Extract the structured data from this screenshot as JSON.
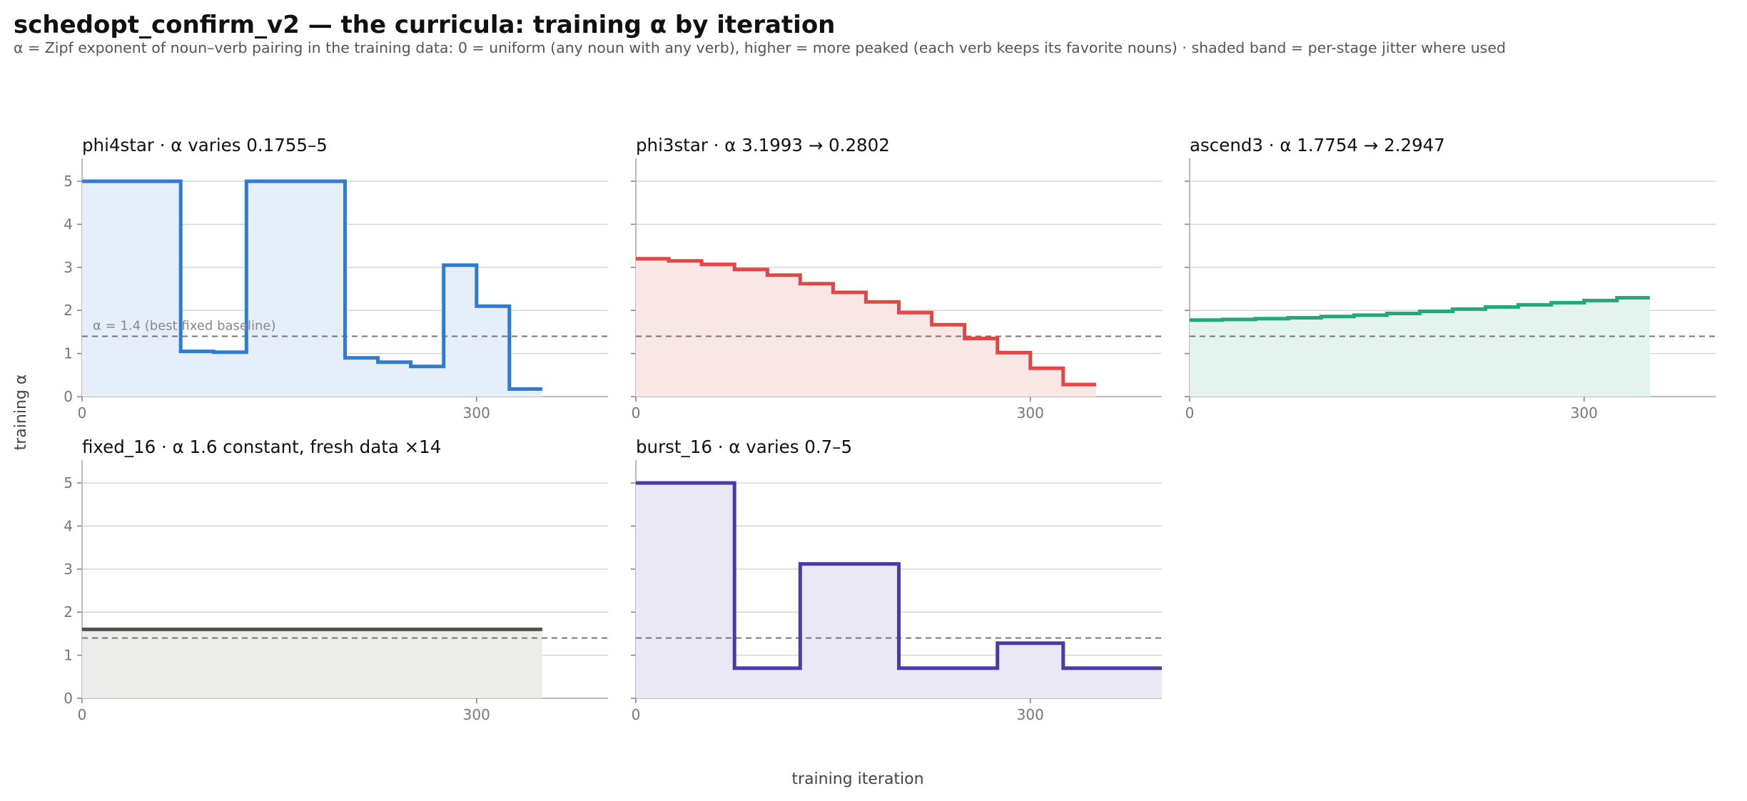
{
  "title": "schedopt_confirm_v2 — the curricula: training α by iteration",
  "subtitle": "α = Zipf exponent of noun–verb pairing in the training data: 0 = uniform (any noun with any verb), higher = more peaked (each verb keeps its favorite nouns) · shaded band = per-stage jitter where used",
  "ylabel": "training α",
  "xlabel": "training iteration",
  "baseline_label": "α = 1.4 (best fixed baseline)",
  "chart_data": [
    {
      "type": "line",
      "name": "phi4star",
      "title": "phi4star   ·   α varies 0.1755–5",
      "color": "#2e7bd1",
      "fill": "#e6eef9",
      "xlim": [
        0,
        400
      ],
      "ylim": [
        0,
        5.3
      ],
      "xticks": [
        0,
        300
      ],
      "yticks": [
        0,
        1,
        2,
        3,
        4,
        5
      ],
      "baseline": 1.4,
      "steps": [
        {
          "x0": 0,
          "x1": 75,
          "y": 5
        },
        {
          "x0": 75,
          "x1": 100,
          "y": 1.05
        },
        {
          "x0": 100,
          "x1": 125,
          "y": 1.03
        },
        {
          "x0": 125,
          "x1": 200,
          "y": 5
        },
        {
          "x0": 200,
          "x1": 225,
          "y": 0.9
        },
        {
          "x0": 225,
          "x1": 250,
          "y": 0.8
        },
        {
          "x0": 250,
          "x1": 275,
          "y": 0.7
        },
        {
          "x0": 275,
          "x1": 300,
          "y": 3.05
        },
        {
          "x0": 300,
          "x1": 325,
          "y": 2.1
        },
        {
          "x0": 325,
          "x1": 350,
          "y": 0.1755
        }
      ]
    },
    {
      "type": "line",
      "name": "phi3star",
      "title": "phi3star   ·   α 3.1993 → 0.2802",
      "color": "#e04848",
      "fill": "#fbe6e6",
      "xlim": [
        0,
        400
      ],
      "ylim": [
        0,
        5.3
      ],
      "xticks": [
        0,
        300
      ],
      "yticks": [
        0,
        1,
        2,
        3,
        4,
        5
      ],
      "baseline": 1.4,
      "steps": [
        {
          "x0": 0,
          "x1": 25,
          "y": 3.1993
        },
        {
          "x0": 25,
          "x1": 50,
          "y": 3.15
        },
        {
          "x0": 50,
          "x1": 75,
          "y": 3.07
        },
        {
          "x0": 75,
          "x1": 100,
          "y": 2.95
        },
        {
          "x0": 100,
          "x1": 125,
          "y": 2.82
        },
        {
          "x0": 125,
          "x1": 150,
          "y": 2.62
        },
        {
          "x0": 150,
          "x1": 175,
          "y": 2.42
        },
        {
          "x0": 175,
          "x1": 200,
          "y": 2.2
        },
        {
          "x0": 200,
          "x1": 225,
          "y": 1.95
        },
        {
          "x0": 225,
          "x1": 250,
          "y": 1.67
        },
        {
          "x0": 250,
          "x1": 275,
          "y": 1.35
        },
        {
          "x0": 275,
          "x1": 300,
          "y": 1.02
        },
        {
          "x0": 300,
          "x1": 325,
          "y": 0.66
        },
        {
          "x0": 325,
          "x1": 350,
          "y": 0.2802
        }
      ]
    },
    {
      "type": "line",
      "name": "ascend3",
      "title": "ascend3   ·   α 1.7754 → 2.2947",
      "color": "#22a87a",
      "fill": "#e3f4ee",
      "xlim": [
        0,
        400
      ],
      "ylim": [
        0,
        5.3
      ],
      "xticks": [
        0,
        300
      ],
      "yticks": [
        0,
        1,
        2,
        3,
        4,
        5
      ],
      "baseline": 1.4,
      "steps": [
        {
          "x0": 0,
          "x1": 25,
          "y": 1.7754
        },
        {
          "x0": 25,
          "x1": 50,
          "y": 1.79
        },
        {
          "x0": 50,
          "x1": 75,
          "y": 1.81
        },
        {
          "x0": 75,
          "x1": 100,
          "y": 1.83
        },
        {
          "x0": 100,
          "x1": 125,
          "y": 1.86
        },
        {
          "x0": 125,
          "x1": 150,
          "y": 1.89
        },
        {
          "x0": 150,
          "x1": 175,
          "y": 1.93
        },
        {
          "x0": 175,
          "x1": 200,
          "y": 1.98
        },
        {
          "x0": 200,
          "x1": 225,
          "y": 2.03
        },
        {
          "x0": 225,
          "x1": 250,
          "y": 2.08
        },
        {
          "x0": 250,
          "x1": 275,
          "y": 2.13
        },
        {
          "x0": 275,
          "x1": 300,
          "y": 2.18
        },
        {
          "x0": 300,
          "x1": 325,
          "y": 2.23
        },
        {
          "x0": 325,
          "x1": 350,
          "y": 2.2947
        }
      ]
    },
    {
      "type": "line",
      "name": "fixed_16",
      "title": "fixed_16   ·   α 1.6 constant, fresh data ×14",
      "color": "#505050",
      "fill": "#ececea",
      "xlim": [
        0,
        400
      ],
      "ylim": [
        0,
        5.3
      ],
      "xticks": [
        0,
        300
      ],
      "yticks": [
        0,
        1,
        2,
        3,
        4,
        5
      ],
      "baseline": 1.4,
      "steps": [
        {
          "x0": 0,
          "x1": 350,
          "y": 1.6
        }
      ]
    },
    {
      "type": "line",
      "name": "burst_16",
      "title": "burst_16   ·   α varies 0.7–5",
      "color": "#4a3aa5",
      "fill": "#eae8f5",
      "xlim": [
        0,
        400
      ],
      "ylim": [
        0,
        5.3
      ],
      "xticks": [
        0,
        300
      ],
      "yticks": [
        0,
        1,
        2,
        3,
        4,
        5
      ],
      "baseline": 1.4,
      "steps": [
        {
          "x0": 0,
          "x1": 75,
          "y": 5
        },
        {
          "x0": 75,
          "x1": 125,
          "y": 0.7
        },
        {
          "x0": 125,
          "x1": 200,
          "y": 3.12
        },
        {
          "x0": 200,
          "x1": 275,
          "y": 0.7
        },
        {
          "x0": 275,
          "x1": 325,
          "y": 1.28
        },
        {
          "x0": 325,
          "x1": 400,
          "y": 0.7
        }
      ]
    }
  ]
}
